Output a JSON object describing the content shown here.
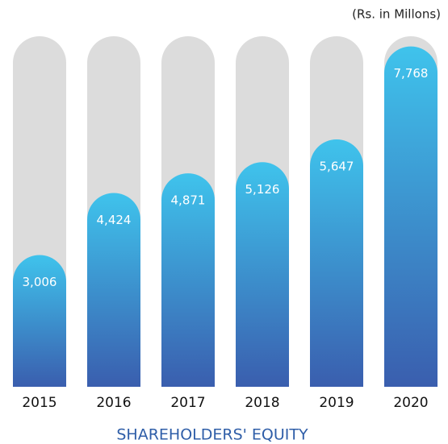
{
  "chart_data": {
    "type": "bar",
    "title": "SHAREHOLDERS' EQUITY",
    "subtitle": "(Rs. in Millons)",
    "categories": [
      "2015",
      "2016",
      "2017",
      "2018",
      "2019",
      "2020"
    ],
    "values": [
      3006,
      4424,
      4871,
      5126,
      5647,
      7768
    ],
    "value_labels": [
      "3,006",
      "4,424",
      "4,871",
      "5,126",
      "5,647",
      "7,768"
    ],
    "ylim": [
      0,
      8000
    ],
    "track_color": "#dcdcdc",
    "gradient": [
      "#3fc3ec",
      "#3a5eae"
    ],
    "title_color": "#2f5ea8"
  }
}
